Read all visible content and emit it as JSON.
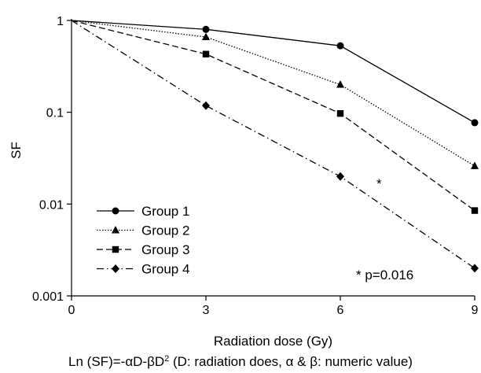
{
  "chart_data": {
    "type": "line",
    "x": [
      0,
      3,
      6,
      9
    ],
    "xlabel": "Radiation dose (Gy)",
    "ylabel": "SF",
    "yscale": "log",
    "xlim": [
      0,
      9
    ],
    "ylim": [
      0.001,
      1
    ],
    "xticks": [
      "0",
      "3",
      "6",
      "9"
    ],
    "yticks": [
      "0.001",
      "0.01",
      "0.1",
      "1"
    ],
    "grid": false,
    "legend_position": "bottom-left",
    "series": [
      {
        "name": "Group 1",
        "values": [
          1,
          0.8,
          0.53,
          0.077
        ],
        "marker": "circle",
        "dash": "solid"
      },
      {
        "name": "Group 2",
        "values": [
          1,
          0.66,
          0.2,
          0.026
        ],
        "marker": "triangle",
        "dash": "dotted"
      },
      {
        "name": "Group 3",
        "values": [
          1,
          0.43,
          0.097,
          0.0085
        ],
        "marker": "square",
        "dash": "dashed"
      },
      {
        "name": "Group 4",
        "values": [
          1,
          0.118,
          0.02,
          0.002
        ],
        "marker": "diamond",
        "dash": "dashdot"
      }
    ],
    "annotations": {
      "star": "*",
      "pvalue": "* p=0.016"
    },
    "formula": {
      "part1": "Ln (SF)=-αD-βD",
      "sup": "2",
      "part2": " (D: radiation does, α & β: numeric value)"
    }
  }
}
